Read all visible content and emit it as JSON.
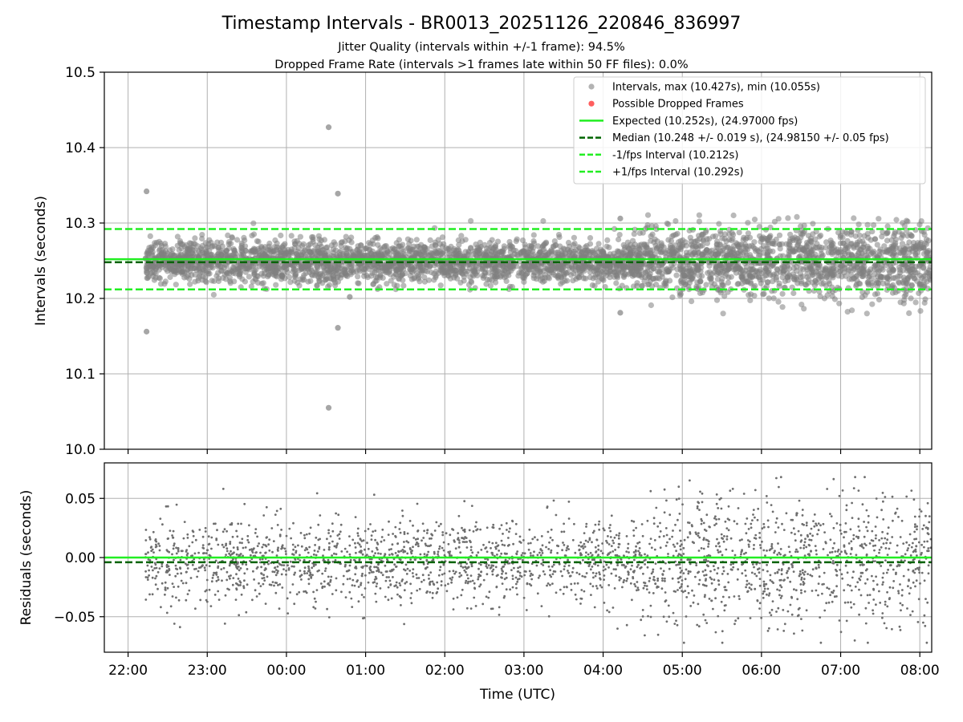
{
  "chart_data": [
    {
      "type": "scatter",
      "panel": "intervals",
      "title": "Timestamp Intervals - BR0013_20251126_220846_836997",
      "subtitle_lines": [
        "Jitter Quality (intervals within +/-1 frame): 94.5%",
        "Dropped Frame Rate (intervals >1 frames late within 50 FF files): 0.0%"
      ],
      "xlabel": "",
      "ylabel": "Intervals (seconds)",
      "xlim_hours": [
        -2.3,
        8.15
      ],
      "ylim": [
        10.0,
        10.5
      ],
      "yticks": [
        10.0,
        10.1,
        10.2,
        10.3,
        10.4,
        10.5
      ],
      "ytick_labels": [
        "10.0",
        "10.1",
        "10.2",
        "10.3",
        "10.4",
        "10.5"
      ],
      "grid": true,
      "legend_position": "top-right",
      "legend": [
        {
          "label": "Intervals, max (10.427s), min (10.055s)",
          "kind": "marker",
          "color": "#808080"
        },
        {
          "label": "Possible Dropped Frames",
          "kind": "marker",
          "color": "#ff4d4d"
        },
        {
          "label": "Expected (10.252s), (24.97000 fps)",
          "kind": "solid",
          "color": "#22ee22"
        },
        {
          "label": "Median (10.248 +/- 0.019 s), (24.98150 +/- 0.05 fps)",
          "kind": "dashed",
          "color": "#006400"
        },
        {
          "label": "-1/fps Interval (10.212s)",
          "kind": "dashed",
          "color": "#22ee22"
        },
        {
          "label": "+1/fps Interval (10.292s)",
          "kind": "dashed",
          "color": "#22ee22"
        }
      ],
      "reference_lines": {
        "expected": 10.252,
        "median": 10.248,
        "minus_one_frame": 10.212,
        "plus_one_frame": 10.292
      },
      "series": [
        {
          "name": "Intervals",
          "time_range_hours": [
            -1.78,
            8.15
          ],
          "generated_density_points": 4000,
          "center": 10.249,
          "spread_before_0430": 0.014,
          "spread_after_0430": 0.023,
          "notable_points": [
            {
              "time": "22:14",
              "value": 10.342
            },
            {
              "time": "22:14",
              "value": 10.156
            },
            {
              "time": "00:32",
              "value": 10.427
            },
            {
              "time": "00:32",
              "value": 10.055
            },
            {
              "time": "00:39",
              "value": 10.339
            },
            {
              "time": "00:39",
              "value": 10.161
            },
            {
              "time": "00:48",
              "value": 10.202
            },
            {
              "time": "04:13",
              "value": 10.306
            },
            {
              "time": "04:13",
              "value": 10.181
            }
          ]
        }
      ]
    },
    {
      "type": "scatter",
      "panel": "residuals",
      "xlabel": "Time (UTC)",
      "ylabel": "Residuals (seconds)",
      "xlim_hours": [
        -2.3,
        8.15
      ],
      "ylim": [
        -0.08,
        0.08
      ],
      "yticks": [
        -0.05,
        0.0,
        0.05
      ],
      "ytick_labels": [
        "−0.05",
        "0.00",
        "0.05"
      ],
      "xticks_hours": [
        -2,
        -1,
        0,
        1,
        2,
        3,
        4,
        5,
        6,
        7,
        8
      ],
      "xtick_labels": [
        "22:00",
        "23:00",
        "00:00",
        "01:00",
        "02:00",
        "03:00",
        "04:00",
        "05:00",
        "06:00",
        "07:00",
        "08:00"
      ],
      "grid": true,
      "reference_lines": {
        "zero": 0.0,
        "median_offset": -0.004
      },
      "series": [
        {
          "name": "Residuals",
          "time_range_hours": [
            -1.78,
            8.15
          ],
          "generated_density_points": 2600,
          "center": -0.003,
          "spread_before_0430": 0.017,
          "spread_after_0430": 0.027
        }
      ]
    }
  ],
  "colors": {
    "points": "#808080",
    "dropped": "#ff4d4d",
    "expected": "#22ee22",
    "median": "#006400",
    "grid": "#b0b0b0",
    "axes": "#000000"
  }
}
